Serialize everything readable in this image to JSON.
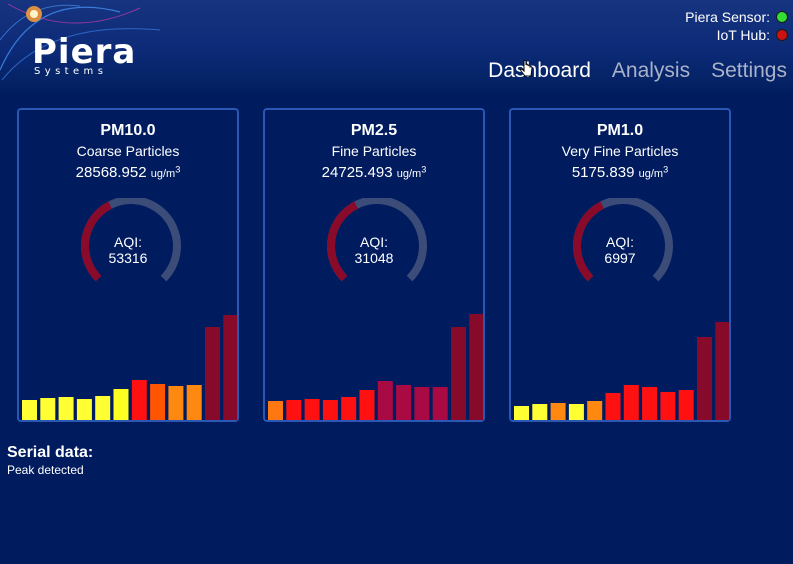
{
  "logo": {
    "name": "Piera",
    "tagline": "Systems"
  },
  "status": {
    "sensor_label": "Piera Sensor:",
    "sensor_color": "#33dd33",
    "hub_label": "IoT Hub:",
    "hub_color": "#cc1111"
  },
  "nav": [
    "Dashboard",
    "Analysis",
    "Settings"
  ],
  "cards": [
    {
      "title": "PM10.0",
      "subtitle": "Coarse Particles",
      "value": "28568.952",
      "unit": "ug/m",
      "unit_sup": "3",
      "aqi_label": "AQI:",
      "aqi": "53316",
      "gauge_fraction": 0.4,
      "bars": [
        {
          "v": 22,
          "c": "#ffff33"
        },
        {
          "v": 24,
          "c": "#ffff33"
        },
        {
          "v": 25,
          "c": "#ffff33"
        },
        {
          "v": 23,
          "c": "#ffff33"
        },
        {
          "v": 26,
          "c": "#ffff33"
        },
        {
          "v": 33,
          "c": "#ffff22"
        },
        {
          "v": 42,
          "c": "#ff1111"
        },
        {
          "v": 38,
          "c": "#ff5500"
        },
        {
          "v": 36,
          "c": "#ff8811"
        },
        {
          "v": 37,
          "c": "#ff8811"
        },
        {
          "v": 95,
          "c": "#880a2a"
        },
        {
          "v": 107,
          "c": "#880a2a"
        }
      ]
    },
    {
      "title": "PM2.5",
      "subtitle": "Fine Particles",
      "value": "24725.493",
      "unit": "ug/m",
      "unit_sup": "3",
      "aqi_label": "AQI:",
      "aqi": "31048",
      "gauge_fraction": 0.4,
      "bars": [
        {
          "v": 21,
          "c": "#ff7711"
        },
        {
          "v": 22,
          "c": "#ff1111"
        },
        {
          "v": 23,
          "c": "#ff1111"
        },
        {
          "v": 22,
          "c": "#ff1111"
        },
        {
          "v": 25,
          "c": "#ff1111"
        },
        {
          "v": 32,
          "c": "#ff1111"
        },
        {
          "v": 41,
          "c": "#aa0a44"
        },
        {
          "v": 37,
          "c": "#aa0a44"
        },
        {
          "v": 35,
          "c": "#aa0a44"
        },
        {
          "v": 35,
          "c": "#aa0a44"
        },
        {
          "v": 95,
          "c": "#880a2a"
        },
        {
          "v": 108,
          "c": "#880a2a"
        }
      ]
    },
    {
      "title": "PM1.0",
      "subtitle": "Very Fine Particles",
      "value": "5175.839",
      "unit": "ug/m",
      "unit_sup": "3",
      "aqi_label": "AQI:",
      "aqi": "6997",
      "gauge_fraction": 0.4,
      "bars": [
        {
          "v": 16,
          "c": "#ffff33"
        },
        {
          "v": 18,
          "c": "#ffff33"
        },
        {
          "v": 19,
          "c": "#ff8811"
        },
        {
          "v": 18,
          "c": "#ffff33"
        },
        {
          "v": 21,
          "c": "#ff8811"
        },
        {
          "v": 29,
          "c": "#ff1111"
        },
        {
          "v": 37,
          "c": "#ff1111"
        },
        {
          "v": 35,
          "c": "#ff1111"
        },
        {
          "v": 30,
          "c": "#ff1111"
        },
        {
          "v": 32,
          "c": "#ff1111"
        },
        {
          "v": 85,
          "c": "#880a2a"
        },
        {
          "v": 100,
          "c": "#880a2a"
        }
      ]
    }
  ],
  "serial": {
    "title": "Serial data:",
    "text": "Peak detected"
  },
  "colors": {
    "gauge_fill": "#8a0a2a",
    "gauge_track": "#3b4c78"
  }
}
